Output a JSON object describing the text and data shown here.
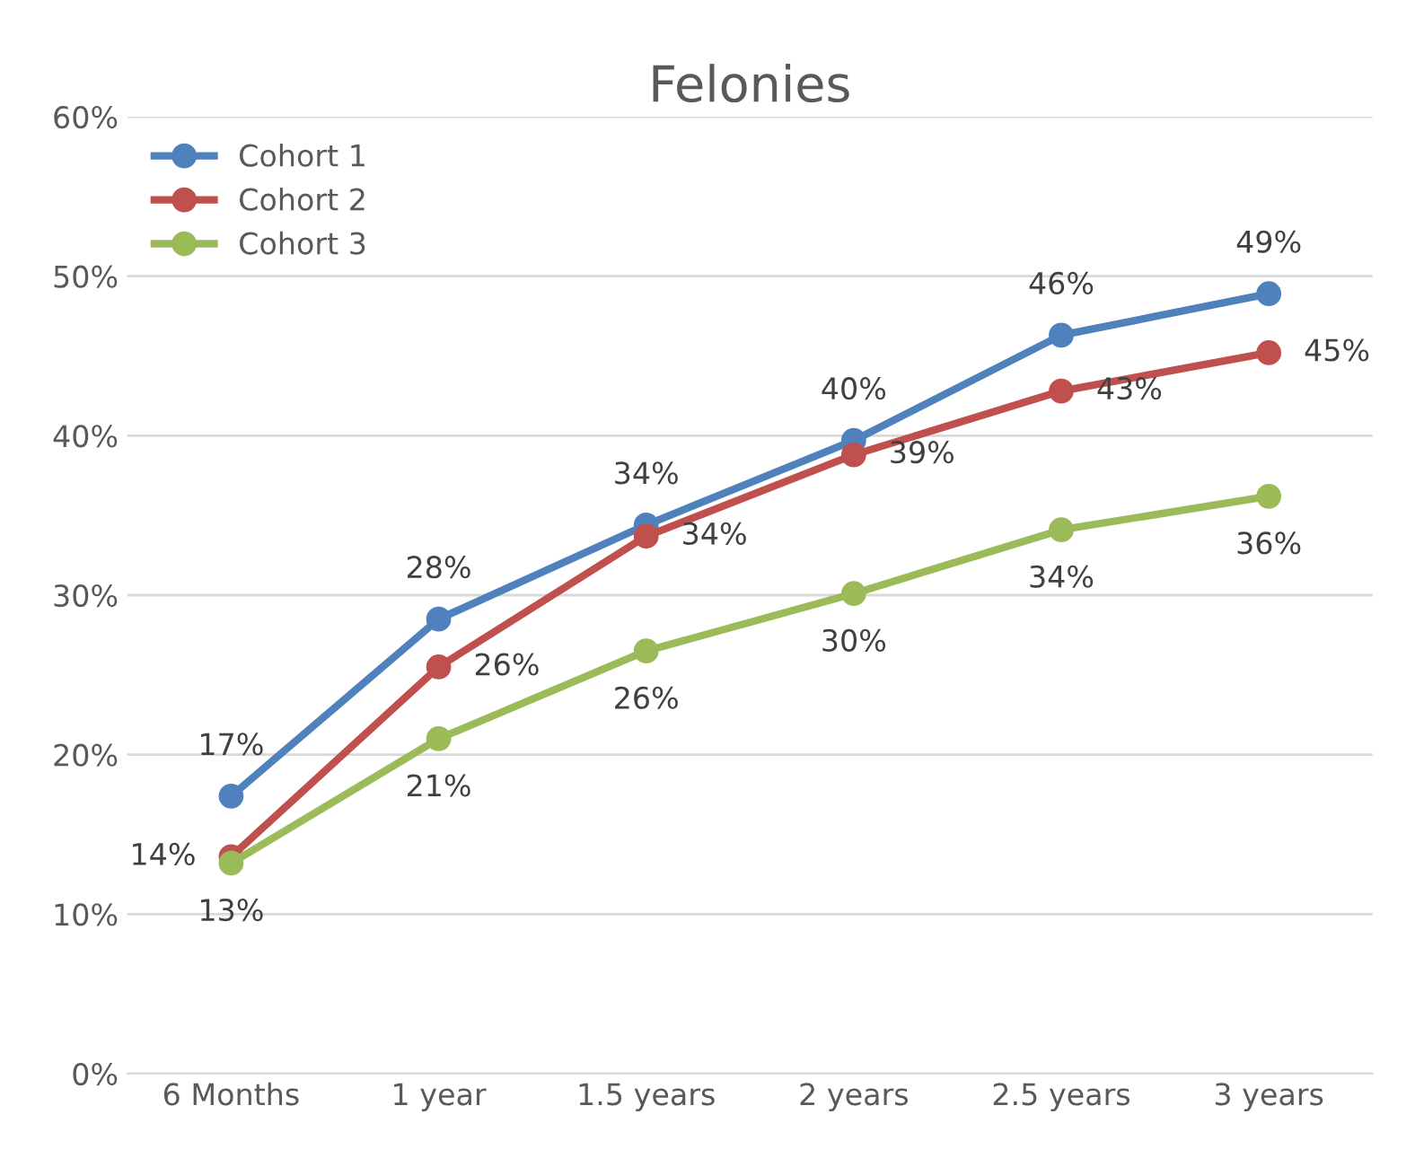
{
  "chart_data": {
    "type": "line",
    "title": "Felonies",
    "categories": [
      "6 Months",
      "1 year",
      "1.5 years",
      "2 years",
      "2.5 years",
      "3 years"
    ],
    "series": [
      {
        "name": "Cohort 1",
        "color": "#4f81bd",
        "values": [
          17.4,
          28.5,
          34.4,
          39.7,
          46.3,
          48.9
        ],
        "value_labels": [
          "17%",
          "28%",
          "34%",
          "40%",
          "46%",
          "49%"
        ]
      },
      {
        "name": "Cohort 2",
        "color": "#c0504d",
        "values": [
          13.6,
          25.5,
          33.7,
          38.8,
          42.8,
          45.2
        ],
        "value_labels": [
          "14%",
          "26%",
          "34%",
          "39%",
          "43%",
          "45%"
        ]
      },
      {
        "name": "Cohort 3",
        "color": "#9bbb59",
        "values": [
          13.2,
          21.0,
          26.5,
          30.1,
          34.1,
          36.2
        ],
        "value_labels": [
          "13%",
          "21%",
          "26%",
          "30%",
          "34%",
          "36%"
        ]
      }
    ],
    "ylim": [
      0,
      60
    ],
    "yticks": [
      {
        "value": 0,
        "label": "0%"
      },
      {
        "value": 10,
        "label": "10%"
      },
      {
        "value": 20,
        "label": "20%"
      },
      {
        "value": 30,
        "label": "30%"
      },
      {
        "value": 40,
        "label": "40%"
      },
      {
        "value": 50,
        "label": "50%"
      },
      {
        "value": 60,
        "label": "60%"
      }
    ],
    "grid": "y",
    "legend": "top left",
    "marker": "circle",
    "line_style": "solid"
  }
}
